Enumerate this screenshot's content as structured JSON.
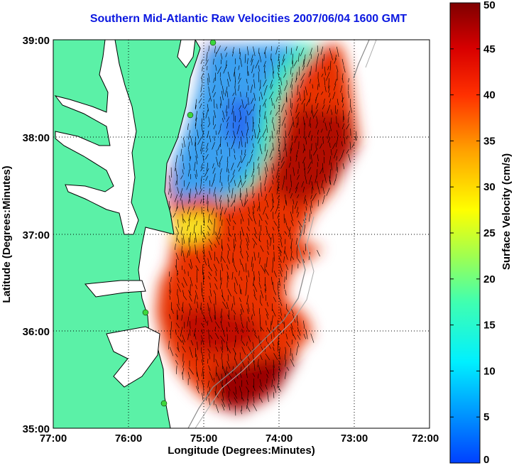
{
  "title": "Southern Mid-Atlantic Raw Velocities 2007/06/04 1600 GMT",
  "chart_data": {
    "type": "heatmap",
    "xlabel": "Longitude (Degrees:Minutes)",
    "ylabel": "Latitude (Degrees:Minutes)",
    "xlim": [
      -77,
      -72
    ],
    "ylim": [
      35,
      39
    ],
    "x_ticks": [
      "77:00",
      "76:00",
      "75:00",
      "74:00",
      "73:00",
      "72:00"
    ],
    "y_ticks": [
      "39:00",
      "38:00",
      "37:00",
      "36:00",
      "35:00"
    ],
    "colorbar": {
      "label": "Surface Velocity (cm/s)",
      "range": [
        0,
        50
      ],
      "ticks": [
        "50",
        "45",
        "40",
        "35",
        "30",
        "25",
        "20",
        "15",
        "10",
        "5",
        "0"
      ]
    },
    "grid": "dotted",
    "velocity_regions": [
      {
        "zone": "north-central offshore (38:00-39:00N, 74:30-75:30W)",
        "speed_cm_s": 8
      },
      {
        "zone": "northeast outer shelf (38:00-39:00N, 73:00-74:00W)",
        "speed_cm_s": 40
      },
      {
        "zone": "mid-shelf (37:00-38:00N, 73:30-74:30W)",
        "speed_cm_s": 45
      },
      {
        "zone": "southern region (35:00-37:00N, 74:00-75:30W)",
        "speed_cm_s": 45
      },
      {
        "zone": "coastal near 37:00N (75:30W)",
        "speed_cm_s": 28
      }
    ],
    "colors": {
      "land": "#5bf1a7",
      "water": "#ffffff",
      "coastline": "#000000",
      "stations": "#3cd63c"
    }
  },
  "icons": {
    "stations": "radar-station-dot-icon",
    "vectors": "velocity-arrow-icon"
  }
}
